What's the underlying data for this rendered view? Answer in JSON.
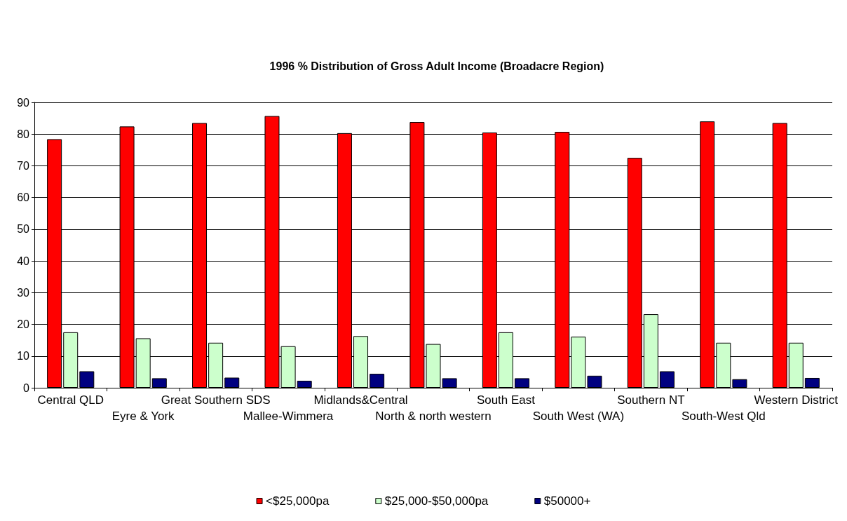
{
  "chart_data": {
    "type": "bar",
    "title": "1996 % Distribution of Gross Adult Income (Broadacre Region)",
    "categories": [
      "Central QLD",
      "Eyre & York",
      "Great Southern SDS",
      "Mallee-Wimmera",
      "Midlands&Central",
      "North & north western",
      "South East",
      "South West (WA)",
      "Southern NT",
      "South-West Qld",
      "Western District"
    ],
    "series": [
      {
        "name": "<$25,000pa",
        "color": "#ff0000",
        "values": [
          78.4,
          82.4,
          83.5,
          85.7,
          80.3,
          83.8,
          80.5,
          80.7,
          72.5,
          84.0,
          83.5
        ]
      },
      {
        "name": "$25,000-$50,000pa",
        "color": "#ccffcc",
        "values": [
          17.5,
          15.6,
          14.2,
          13.1,
          16.3,
          13.8,
          17.5,
          16.1,
          23.2,
          14.2,
          14.2
        ]
      },
      {
        "name": "$50000+",
        "color": "#000080",
        "values": [
          5.2,
          3.0,
          3.2,
          2.2,
          4.4,
          3.0,
          3.0,
          3.8,
          5.2,
          2.7,
          3.1
        ]
      }
    ],
    "ylim": [
      0,
      90
    ],
    "yticks": [
      0,
      10,
      20,
      30,
      40,
      50,
      60,
      70,
      80,
      90
    ],
    "grid": "y",
    "legend": "bottom"
  }
}
